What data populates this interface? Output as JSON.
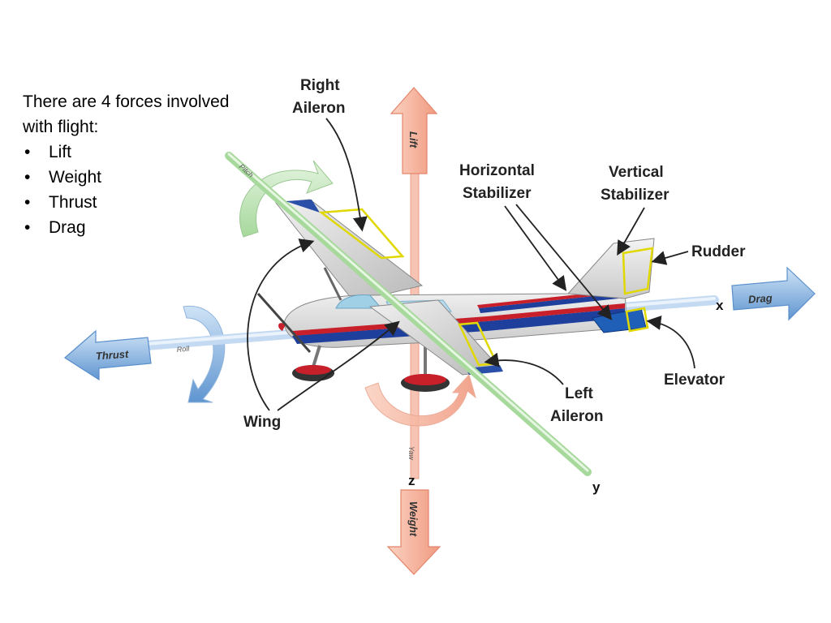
{
  "intro": {
    "heading": "There are 4 forces involved with flight:",
    "forces": [
      "Lift",
      "Weight",
      "Thrust",
      "Drag"
    ]
  },
  "labels": {
    "right_aileron_1": "Right",
    "right_aileron_2": "Aileron",
    "horizontal_stabilizer_1": "Horizontal",
    "horizontal_stabilizer_2": "Stabilizer",
    "vertical_stabilizer_1": "Vertical",
    "vertical_stabilizer_2": "Stabilizer",
    "rudder": "Rudder",
    "elevator": "Elevator",
    "left_aileron_1": "Left",
    "left_aileron_2": "Aileron",
    "wing": "Wing"
  },
  "force_arrows": {
    "lift": "Lift",
    "weight": "Weight",
    "thrust": "Thrust",
    "drag": "Drag"
  },
  "axes": {
    "x": "x",
    "y": "y",
    "z": "z",
    "roll": "Roll",
    "pitch": "Pitch",
    "yaw": "Yaw"
  },
  "colors": {
    "lift_weight": "#f4a28a",
    "thrust_drag": "#6fa3da",
    "pitch_axis": "#a8d9a0",
    "fuselage_blue": "#1f3f9c",
    "fuselage_red": "#c8202a",
    "highlight": "#e8e000"
  }
}
